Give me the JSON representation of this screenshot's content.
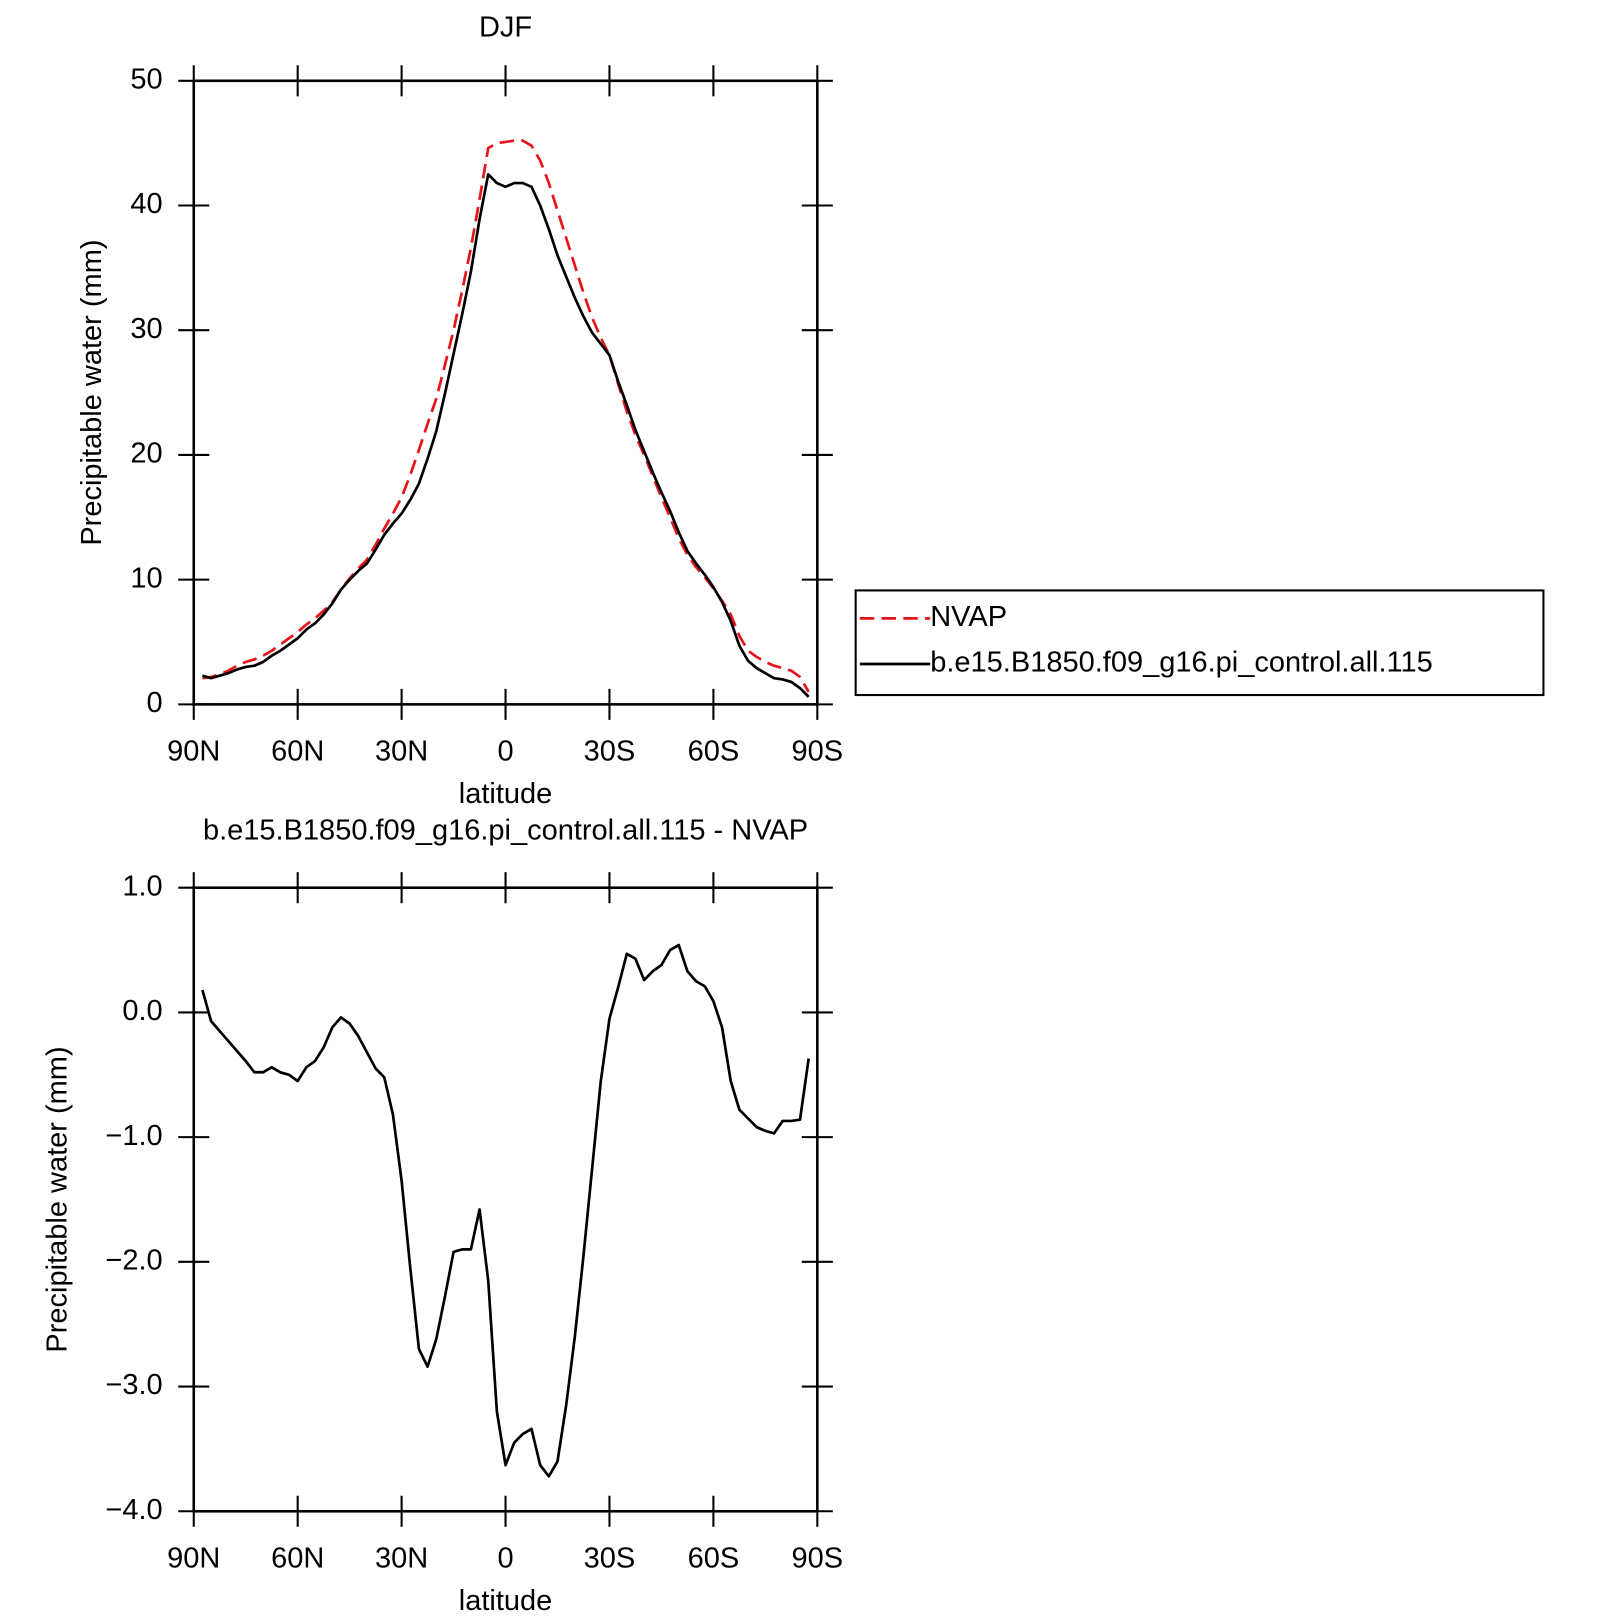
{
  "chart_data": [
    {
      "type": "line",
      "title": "DJF",
      "x_label": "latitude",
      "y_label": "Precipitable water (mm)",
      "x": [
        87.5,
        85,
        82.5,
        80,
        77.5,
        75,
        72.5,
        70,
        67.5,
        65,
        62.5,
        60,
        57.5,
        55,
        52.5,
        50,
        47.5,
        45,
        42.5,
        40,
        37.5,
        35,
        32.5,
        30,
        27.5,
        25,
        22.5,
        20,
        17.5,
        15,
        12.5,
        10,
        7.5,
        5,
        2.5,
        0,
        -2.5,
        -5,
        -7.5,
        -10,
        -12.5,
        -15,
        -17.5,
        -20,
        -22.5,
        -25,
        -27.5,
        -30,
        -32.5,
        -35,
        -37.5,
        -40,
        -42.5,
        -45,
        -47.5,
        -50,
        -52.5,
        -55,
        -57.5,
        -60,
        -62.5,
        -65,
        -67.5,
        -70,
        -72.5,
        -75,
        -77.5,
        -80,
        -82.5,
        -85,
        -87.5
      ],
      "series": [
        {
          "name": "NVAP",
          "color": "#e8141b",
          "dashed": true,
          "values": [
            2.1,
            2.2,
            2.4,
            2.7,
            3.1,
            3.4,
            3.6,
            3.9,
            4.3,
            4.8,
            5.3,
            5.8,
            6.4,
            6.9,
            7.5,
            8.2,
            9.2,
            10.1,
            10.9,
            11.6,
            12.8,
            14.1,
            15.3,
            16.6,
            18.4,
            20.4,
            22.5,
            24.5,
            27.2,
            30.0,
            33.2,
            36.6,
            40.5,
            44.6,
            45.0,
            45.1,
            45.2,
            45.2,
            44.8,
            43.6,
            41.8,
            39.6,
            37.4,
            35.2,
            33.0,
            31.0,
            29.4,
            28.0,
            25.7,
            23.5,
            21.6,
            20.0,
            18.3,
            16.6,
            15.0,
            13.3,
            12.0,
            11.0,
            10.2,
            9.3,
            8.3,
            7.2,
            5.5,
            4.3,
            3.8,
            3.4,
            3.1,
            2.9,
            2.7,
            2.2,
            1.0
          ]
        },
        {
          "name": "b.e15.B1850.f09_g16.pi_control.all.115",
          "color": "#000000",
          "dashed": false,
          "values": [
            2.3,
            2.1,
            2.3,
            2.5,
            2.8,
            3.0,
            3.1,
            3.4,
            3.9,
            4.3,
            4.8,
            5.3,
            6.0,
            6.5,
            7.2,
            8.1,
            9.2,
            10.0,
            10.7,
            11.3,
            12.4,
            13.6,
            14.5,
            15.3,
            16.4,
            17.7,
            19.7,
            21.9,
            24.9,
            28.1,
            31.3,
            34.7,
            38.9,
            42.5,
            41.8,
            41.5,
            41.8,
            41.8,
            41.5,
            40.0,
            38.1,
            36.0,
            34.3,
            32.6,
            31.1,
            29.8,
            28.9,
            28.0,
            25.9,
            24.0,
            22.0,
            20.3,
            18.6,
            17.0,
            15.5,
            13.8,
            12.3,
            11.3,
            10.4,
            9.4,
            8.2,
            6.7,
            4.7,
            3.5,
            2.9,
            2.5,
            2.1,
            2.0,
            1.8,
            1.3,
            0.6
          ]
        }
      ],
      "xlim": [
        90,
        -90
      ],
      "xticks": [
        {
          "value": 90,
          "label": "90N"
        },
        {
          "value": 60,
          "label": "60N"
        },
        {
          "value": 30,
          "label": "30N"
        },
        0,
        {
          "value": -30,
          "label": "30S"
        },
        {
          "value": -60,
          "label": "60S"
        },
        {
          "value": -90,
          "label": "90S"
        }
      ],
      "ylim": [
        0,
        50
      ],
      "yticks": [
        0,
        10,
        20,
        30,
        40,
        50
      ],
      "legend": "right"
    },
    {
      "type": "line",
      "title": "b.e15.B1850.f09_g16.pi_control.all.115 - NVAP",
      "x_label": "latitude",
      "y_label": "Precipitable water (mm)",
      "x": [
        87.5,
        85,
        82.5,
        80,
        77.5,
        75,
        72.5,
        70,
        67.5,
        65,
        62.5,
        60,
        57.5,
        55,
        52.5,
        50,
        47.5,
        45,
        42.5,
        40,
        37.5,
        35,
        32.5,
        30,
        27.5,
        25,
        22.5,
        20,
        17.5,
        15,
        12.5,
        10,
        7.5,
        5,
        2.5,
        0,
        -2.5,
        -5,
        -7.5,
        -10,
        -12.5,
        -15,
        -17.5,
        -20,
        -22.5,
        -25,
        -27.5,
        -30,
        -32.5,
        -35,
        -37.5,
        -40,
        -42.5,
        -45,
        -47.5,
        -50,
        -52.5,
        -55,
        -57.5,
        -60,
        -62.5,
        -65,
        -67.5,
        -70,
        -72.5,
        -75,
        -77.5,
        -80,
        -82.5,
        -85,
        -87.5
      ],
      "series": [
        {
          "color": "#000000",
          "dashed": false,
          "values": [
            0.18,
            -0.07,
            -0.15,
            -0.23,
            -0.31,
            -0.39,
            -0.48,
            -0.48,
            -0.44,
            -0.48,
            -0.5,
            -0.55,
            -0.44,
            -0.39,
            -0.28,
            -0.12,
            -0.04,
            -0.09,
            -0.19,
            -0.32,
            -0.45,
            -0.52,
            -0.82,
            -1.35,
            -2.05,
            -2.7,
            -2.84,
            -2.62,
            -2.28,
            -1.92,
            -1.9,
            -1.9,
            -1.58,
            -2.15,
            -3.2,
            -3.63,
            -3.45,
            -3.38,
            -3.34,
            -3.63,
            -3.72,
            -3.6,
            -3.15,
            -2.6,
            -1.95,
            -1.25,
            -0.55,
            -0.05,
            0.2,
            0.47,
            0.43,
            0.26,
            0.33,
            0.38,
            0.5,
            0.54,
            0.33,
            0.25,
            0.21,
            0.09,
            -0.12,
            -0.55,
            -0.78,
            -0.85,
            -0.92,
            -0.95,
            -0.97,
            -0.87,
            -0.87,
            -0.86,
            -0.37
          ]
        }
      ],
      "xlim": [
        90,
        -90
      ],
      "xticks": [
        {
          "value": 90,
          "label": "90N"
        },
        {
          "value": 60,
          "label": "60N"
        },
        {
          "value": 30,
          "label": "30N"
        },
        0,
        {
          "value": -30,
          "label": "30S"
        },
        {
          "value": -60,
          "label": "60S"
        },
        {
          "value": -90,
          "label": "90S"
        }
      ],
      "ylim": [
        -4,
        1
      ],
      "yticks": [
        {
          "value": -4,
          "label": "−4.0"
        },
        {
          "value": -3,
          "label": "−3.0"
        },
        {
          "value": -2,
          "label": "−2.0"
        },
        {
          "value": -1,
          "label": "−1.0"
        },
        {
          "value": 0,
          "label": "0.0"
        },
        {
          "value": 1,
          "label": "1.0"
        }
      ]
    }
  ]
}
